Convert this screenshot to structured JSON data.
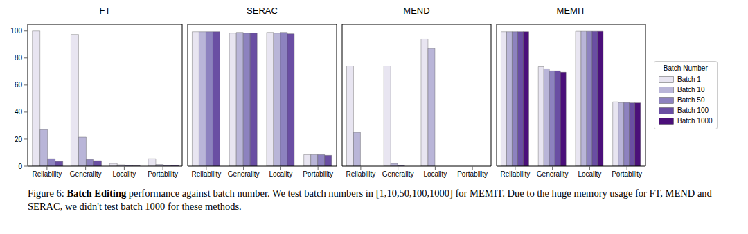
{
  "chart_data": [
    {
      "type": "bar",
      "title": "FT",
      "categories": [
        "Reliability",
        "Generality",
        "Locality",
        "Portability"
      ],
      "ylim": [
        0,
        105
      ],
      "yticks": [
        0,
        20,
        40,
        60,
        80,
        100
      ],
      "series": [
        {
          "name": "Batch 1",
          "color": "#e8e5f1",
          "values": [
            100,
            97.5,
            2,
            5.5
          ]
        },
        {
          "name": "Batch 10",
          "color": "#b9b5d8",
          "values": [
            27,
            21.5,
            1,
            1.2
          ]
        },
        {
          "name": "Batch 50",
          "color": "#8d82bf",
          "values": [
            5.5,
            5,
            0.5,
            0.5
          ]
        },
        {
          "name": "Batch 100",
          "color": "#6a4ea3",
          "values": [
            3.5,
            4,
            0.3,
            0.5
          ]
        }
      ]
    },
    {
      "type": "bar",
      "title": "SERAC",
      "tick_labels": "x",
      "categories": [
        "Reliability",
        "Generality",
        "Locality",
        "Portability"
      ],
      "ylim": [
        0,
        105
      ],
      "yticks": [
        0,
        20,
        40,
        60,
        80,
        100
      ],
      "series": [
        {
          "name": "Batch 1",
          "color": "#e8e5f1",
          "values": [
            99.5,
            98.5,
            99,
            8.5
          ]
        },
        {
          "name": "Batch 10",
          "color": "#b9b5d8",
          "values": [
            99.5,
            99,
            98.5,
            8.5
          ]
        },
        {
          "name": "Batch 50",
          "color": "#8d82bf",
          "values": [
            99.5,
            98.5,
            99,
            8.5
          ]
        },
        {
          "name": "Batch 100",
          "color": "#6a4ea3",
          "values": [
            99.5,
            98.5,
            98,
            8
          ]
        }
      ]
    },
    {
      "type": "bar",
      "title": "MEND",
      "tick_labels": "x",
      "categories": [
        "Reliability",
        "Generality",
        "Locality",
        "Portability"
      ],
      "ylim": [
        0,
        105
      ],
      "yticks": [
        0,
        20,
        40,
        60,
        80,
        100
      ],
      "series": [
        {
          "name": "Batch 1",
          "color": "#e8e5f1",
          "values": [
            74,
            74,
            94,
            0
          ]
        },
        {
          "name": "Batch 10",
          "color": "#b9b5d8",
          "values": [
            25,
            2,
            87,
            0
          ]
        },
        {
          "name": "Batch 50",
          "color": "#8d82bf",
          "values": [
            0,
            0.5,
            0,
            0
          ]
        },
        {
          "name": "Batch 100",
          "color": "#6a4ea3",
          "values": [
            0,
            0,
            0,
            0
          ]
        }
      ]
    },
    {
      "type": "bar",
      "title": "MEMIT",
      "tick_labels": "x",
      "legend": "right",
      "legend_title": "Batch Number",
      "categories": [
        "Reliability",
        "Generality",
        "Locality",
        "Portability"
      ],
      "ylim": [
        0,
        105
      ],
      "yticks": [
        0,
        20,
        40,
        60,
        80,
        100
      ],
      "series": [
        {
          "name": "Batch 1",
          "color": "#e8e5f1",
          "values": [
            99.5,
            73.5,
            99.8,
            47.5
          ]
        },
        {
          "name": "Batch 10",
          "color": "#b9b5d8",
          "values": [
            99.5,
            72,
            99.8,
            47
          ]
        },
        {
          "name": "Batch 50",
          "color": "#8d82bf",
          "values": [
            99.5,
            70.5,
            99.8,
            47
          ]
        },
        {
          "name": "Batch 100",
          "color": "#6a4ea3",
          "values": [
            99.5,
            70.5,
            99.8,
            46.8
          ]
        },
        {
          "name": "Batch 1000",
          "color": "#4b0f7a",
          "values": [
            99.5,
            69.5,
            99.8,
            46.8
          ]
        }
      ]
    }
  ],
  "caption": {
    "label": "Figure 6:",
    "bold": "Batch Editing",
    "text": "performance against batch number. We test batch numbers in [1,10,50,100,1000] for MEMIT. Due to the huge memory usage for FT, MEND and SERAC, we didn't test batch 1000 for these methods."
  }
}
